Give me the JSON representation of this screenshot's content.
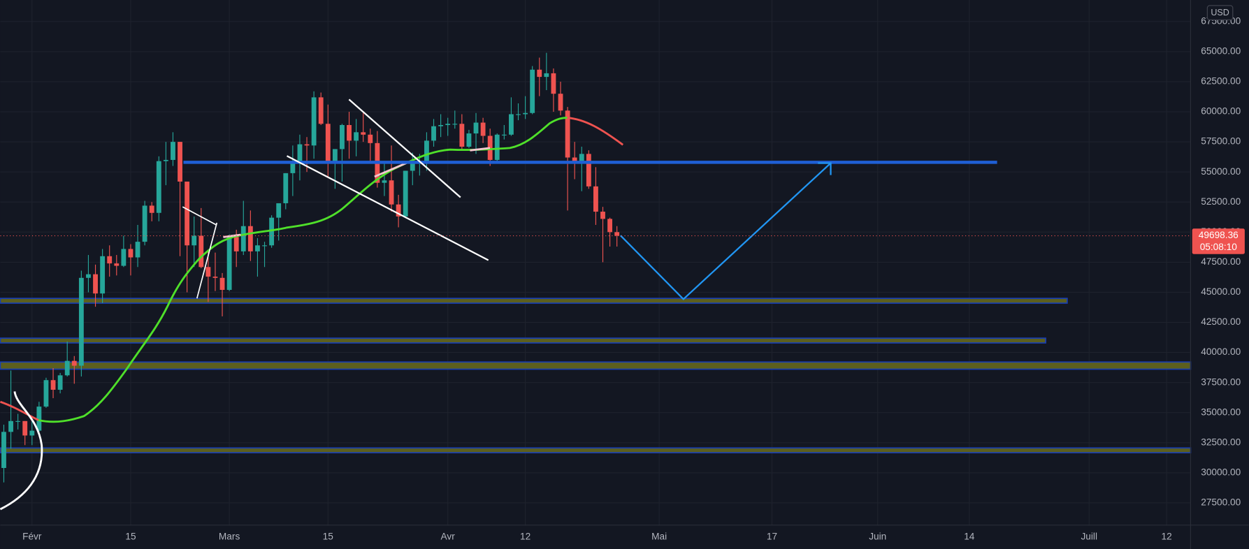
{
  "chart_data": {
    "type": "candlestick",
    "currency": "USD",
    "last_price": 49698.36,
    "countdown": "05:08:10",
    "up_color": "#26a69a",
    "down_color": "#ef5350",
    "grid": true,
    "xlim": [
      -4.5,
      164.4
    ],
    "ylim": [
      25650,
      69290
    ],
    "xticks": [
      {
        "value": 0,
        "label": "Févr"
      },
      {
        "value": 14,
        "label": "15"
      },
      {
        "value": 28,
        "label": "Mars"
      },
      {
        "value": 42,
        "label": "15"
      },
      {
        "value": 59,
        "label": "Avr"
      },
      {
        "value": 70,
        "label": "12"
      },
      {
        "value": 89,
        "label": "Mai"
      },
      {
        "value": 105,
        "label": "17"
      },
      {
        "value": 120,
        "label": "Juin"
      },
      {
        "value": 133,
        "label": "14"
      },
      {
        "value": 150,
        "label": "Juill"
      },
      {
        "value": 161,
        "label": "12"
      }
    ],
    "yticks": [
      {
        "value": 27500,
        "label": "27500.00"
      },
      {
        "value": 30000,
        "label": "30000.00"
      },
      {
        "value": 32500,
        "label": "32500.00"
      },
      {
        "value": 35000,
        "label": "35000.00"
      },
      {
        "value": 37500,
        "label": "37500.00"
      },
      {
        "value": 40000,
        "label": "40000.00"
      },
      {
        "value": 42500,
        "label": "42500.00"
      },
      {
        "value": 45000,
        "label": "45000.00"
      },
      {
        "value": 47500,
        "label": "47500.00"
      },
      {
        "value": 50000,
        "label": "50000.00"
      },
      {
        "value": 52500,
        "label": "52500.00"
      },
      {
        "value": 55000,
        "label": "55000.00"
      },
      {
        "value": 57500,
        "label": "57500.00"
      },
      {
        "value": 60000,
        "label": "60000.00"
      },
      {
        "value": 62500,
        "label": "62500.00"
      },
      {
        "value": 65000,
        "label": "65000.00"
      },
      {
        "value": 67500,
        "label": "67500.00"
      }
    ],
    "x": [
      -4,
      -3,
      -2,
      -1,
      0,
      1,
      2,
      3,
      4,
      5,
      6,
      7,
      8,
      9,
      10,
      11,
      12,
      13,
      14,
      15,
      16,
      17,
      18,
      19,
      20,
      21,
      22,
      23,
      24,
      25,
      26,
      27,
      28,
      29,
      30,
      31,
      32,
      33,
      34,
      35,
      36,
      37,
      38,
      39,
      40,
      41,
      42,
      43,
      44,
      45,
      46,
      47,
      48,
      49,
      50,
      51,
      52,
      53,
      54,
      55,
      56,
      57,
      58,
      59,
      60,
      61,
      62,
      63,
      64,
      65,
      66,
      67,
      68,
      69,
      70,
      71,
      72,
      73,
      74,
      75,
      76,
      77,
      78,
      79,
      80,
      81,
      82,
      83
    ],
    "open": [
      30400,
      33400,
      34300,
      34300,
      33100,
      33500,
      35500,
      37700,
      36900,
      38100,
      39300,
      38900,
      46200,
      46500,
      44900,
      48000,
      47400,
      47200,
      48600,
      47900,
      49200,
      52200,
      51600,
      55900,
      56000,
      57500,
      54200,
      48900,
      49700,
      47100,
      46300,
      46200,
      45200,
      49600,
      48400,
      50500,
      48400,
      48900,
      48900,
      51200,
      52400,
      54900,
      55900,
      57300,
      57200,
      61200,
      59000,
      55700,
      56900,
      58900,
      57600,
      58300,
      58100,
      57400,
      54100,
      54300,
      52300,
      51300,
      55100,
      55800,
      55800,
      57600,
      58800,
      58900,
      59000,
      59000,
      57100,
      58200,
      59100,
      58000,
      56000,
      58100,
      58100,
      59800,
      59800,
      59900,
      63500,
      62900,
      63200,
      61500,
      60100,
      56200,
      55700,
      56500,
      53800,
      51700,
      51100,
      50000
    ],
    "high": [
      34000,
      38500,
      34900,
      34300,
      34700,
      35900,
      37900,
      38700,
      38300,
      40900,
      39700,
      46800,
      48100,
      47300,
      48600,
      48900,
      48100,
      49700,
      49000,
      50600,
      52600,
      52500,
      56300,
      57500,
      58300,
      57500,
      54200,
      51300,
      52000,
      48400,
      48300,
      46600,
      49800,
      50200,
      52600,
      51800,
      49500,
      49200,
      51400,
      52400,
      54900,
      57200,
      58100,
      57900,
      61700,
      61600,
      60600,
      56900,
      59000,
      60000,
      59400,
      59900,
      58600,
      58400,
      55800,
      57200,
      53100,
      55100,
      56600,
      56500,
      58300,
      59400,
      59800,
      59500,
      60100,
      59800,
      58500,
      59900,
      59500,
      58600,
      58200,
      58900,
      61200,
      60700,
      61300,
      63800,
      64500,
      64900,
      63600,
      62500,
      60400,
      57500,
      57100,
      56800,
      55400,
      52100,
      51200,
      50500
    ],
    "low": [
      29200,
      32000,
      33600,
      32300,
      32300,
      33400,
      35400,
      36200,
      36600,
      38000,
      37400,
      38000,
      45000,
      43800,
      44100,
      46300,
      46400,
      47100,
      46400,
      47100,
      48900,
      50900,
      50900,
      53900,
      55500,
      48000,
      45000,
      47100,
      47000,
      44200,
      45100,
      43000,
      45100,
      47100,
      48100,
      47600,
      46300,
      47100,
      48700,
      49300,
      51900,
      53000,
      54300,
      55000,
      56100,
      58900,
      54600,
      53600,
      54200,
      56100,
      56300,
      57500,
      55800,
      53700,
      53000,
      51700,
      50400,
      51300,
      53900,
      54700,
      55100,
      57100,
      57900,
      58000,
      58600,
      56900,
      57000,
      56500,
      57400,
      55500,
      55900,
      57700,
      58000,
      59300,
      59400,
      59800,
      61300,
      61800,
      60000,
      59700,
      51800,
      54400,
      53400,
      53600,
      50600,
      47500,
      48800,
      48800
    ],
    "close": [
      33400,
      34300,
      34300,
      33100,
      33500,
      35500,
      37700,
      36900,
      38100,
      39300,
      38900,
      46200,
      46500,
      44900,
      48000,
      47400,
      47200,
      48600,
      47900,
      49200,
      52200,
      51600,
      55900,
      56000,
      57500,
      54200,
      48900,
      49700,
      47100,
      46300,
      46200,
      45200,
      49600,
      48400,
      50500,
      48400,
      48900,
      48900,
      51200,
      52400,
      54900,
      55900,
      57300,
      57200,
      61200,
      59000,
      55700,
      56900,
      58900,
      57600,
      58300,
      58100,
      57400,
      54100,
      54300,
      52300,
      51300,
      55100,
      55800,
      55800,
      57600,
      58800,
      58900,
      59000,
      59000,
      57100,
      58200,
      59100,
      58000,
      56000,
      58100,
      58100,
      59800,
      59800,
      59900,
      63500,
      62900,
      63200,
      61500,
      60100,
      56200,
      55700,
      56500,
      53800,
      51700,
      51100,
      50000,
      49698.36
    ]
  }
}
